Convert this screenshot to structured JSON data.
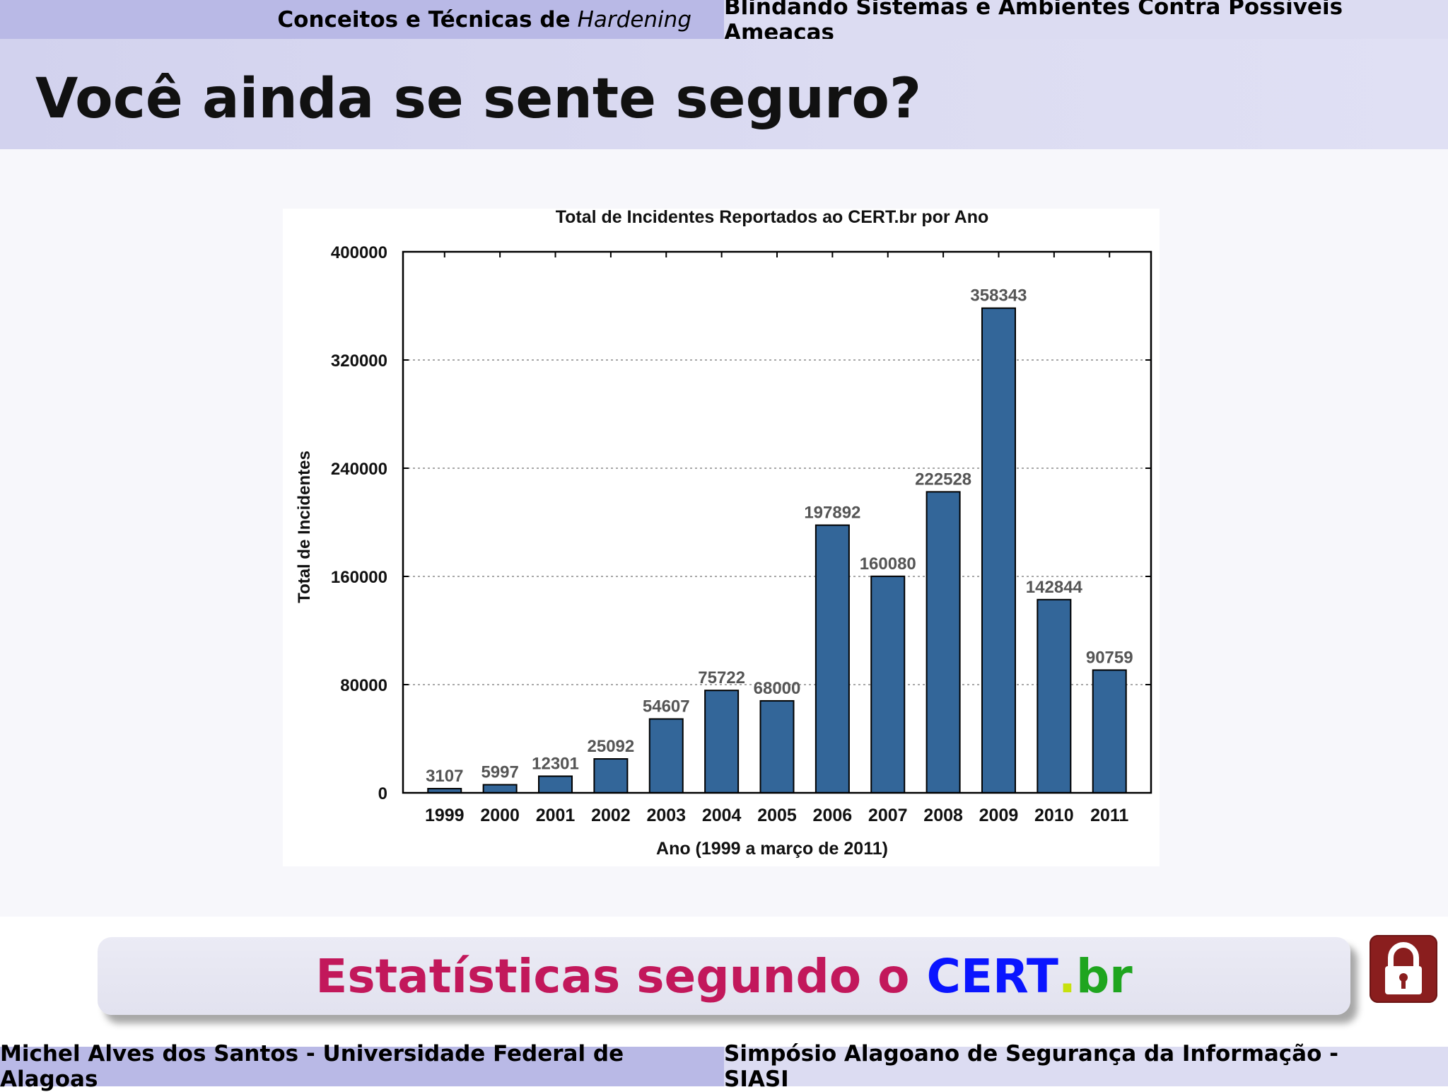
{
  "header": {
    "left_text": "Conceitos e Técnicas de",
    "left_italic": "Hardening",
    "right_text": "Blindando Sistemas e Ambientes Contra Possíveis Ameaças"
  },
  "slide": {
    "title": "Você ainda se sente seguro?"
  },
  "banner": {
    "text": "Estatísticas segundo o",
    "cert": "CERT",
    "dot": ".",
    "br": "br"
  },
  "icons": {
    "lock": "lock-icon"
  },
  "footer": {
    "left_text": "Michel Alves dos Santos - Universidade Federal de Alagoas",
    "right_text": "Simpósio Alagoano de Segurança da Informação - SIASI"
  },
  "colors": {
    "bar": "#336699",
    "banner_text": "#c2185b",
    "cert_blue": "#0a15ff",
    "dot_yellow": "#c7e10e",
    "br_green": "#1fa51f",
    "lock_bg": "#8a1e1e"
  },
  "chart_data": {
    "type": "bar",
    "title": "Total de Incidentes Reportados ao CERT.br por Ano",
    "xlabel": "Ano (1999 a março de 2011)",
    "ylabel": "Total de Incidentes",
    "categories": [
      "1999",
      "2000",
      "2001",
      "2002",
      "2003",
      "2004",
      "2005",
      "2006",
      "2007",
      "2008",
      "2009",
      "2010",
      "2011"
    ],
    "values": [
      3107,
      5997,
      12301,
      25092,
      54607,
      75722,
      68000,
      197892,
      160080,
      222528,
      358343,
      142844,
      90759
    ],
    "data_labels": [
      "3107",
      "5997",
      "12301",
      "25092",
      "54607",
      "75722",
      "68000",
      "197892",
      "160080",
      "222528",
      "358343",
      "142844",
      "90759"
    ],
    "ylim": [
      0,
      400000
    ],
    "yticks": [
      0,
      80000,
      160000,
      240000,
      320000,
      400000
    ],
    "ytick_labels": [
      "0",
      "80000",
      "160000",
      "240000",
      "320000",
      "400000"
    ],
    "grid": true,
    "legend": "none"
  }
}
